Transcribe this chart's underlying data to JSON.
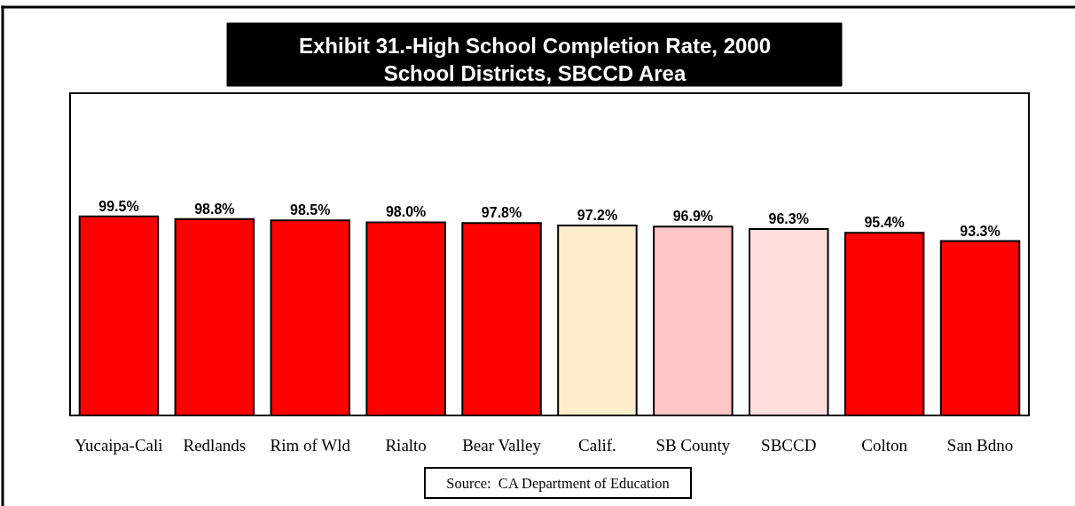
{
  "chart_data": {
    "type": "bar",
    "title": "Exhibit 31.-High School Completion Rate, 2000\nSchool Districts, SBCCD Area",
    "categories": [
      "Yucaipa-Cali",
      "Redlands",
      "Rim of Wld",
      "Rialto",
      "Bear Valley",
      "Calif.",
      "SB County",
      "SBCCD",
      "Colton",
      "San Bdno"
    ],
    "values": [
      99.5,
      98.8,
      98.5,
      98.0,
      97.8,
      97.2,
      96.9,
      96.3,
      95.4,
      93.3
    ],
    "colors": [
      "#ff0000",
      "#ff0000",
      "#ff0000",
      "#ff0000",
      "#ff0000",
      "#ffedcc",
      "#ffc6c6",
      "#ffdede",
      "#ff0000",
      "#ff0000"
    ],
    "value_labels": [
      "99.5%",
      "98.8%",
      "98.5%",
      "98.0%",
      "97.8%",
      "97.2%",
      "96.9%",
      "96.3%",
      "95.4%",
      "93.3%"
    ],
    "ylim": [
      50,
      130
    ],
    "tick_labels": "x",
    "annotations": [
      "Source:  CA Department of Education"
    ]
  }
}
